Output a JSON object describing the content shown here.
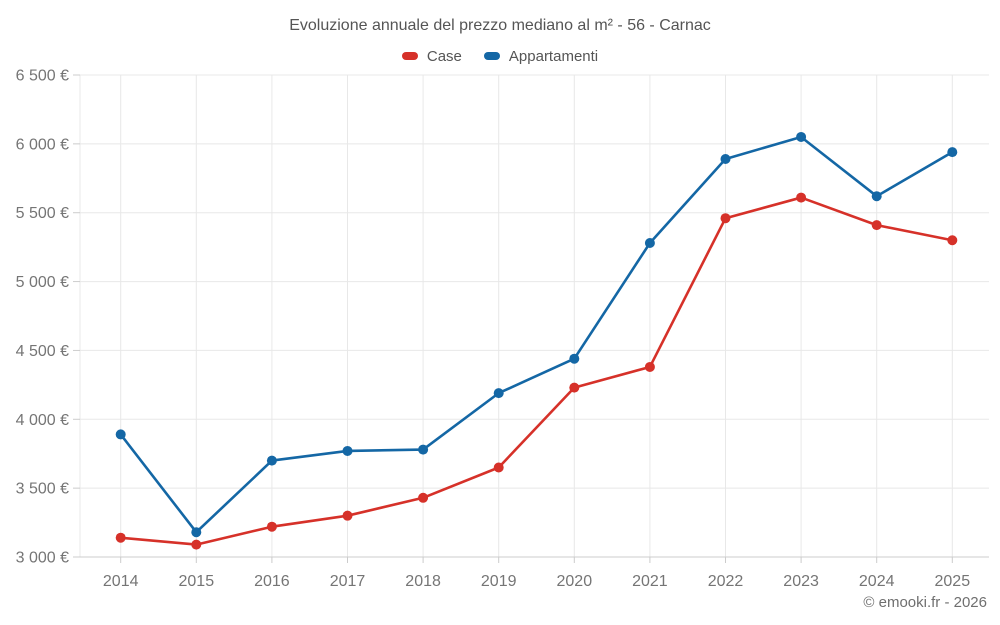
{
  "footer": {
    "copyright": "© emooki.fr - 2026"
  },
  "chart_data": {
    "type": "line",
    "title": "Evoluzione annuale del prezzo mediano al m² - 56 - Carnac",
    "x_labels": [
      "2014",
      "2015",
      "2016",
      "2017",
      "2018",
      "2019",
      "2020",
      "2021",
      "2022",
      "2023",
      "2024",
      "2025"
    ],
    "series": [
      {
        "name": "Case",
        "color": "#d63129",
        "values": [
          3140,
          3090,
          3220,
          3300,
          3430,
          3650,
          4230,
          4380,
          5460,
          5610,
          5410,
          5300
        ]
      },
      {
        "name": "Appartamenti",
        "color": "#1467a5",
        "values": [
          3890,
          3180,
          3700,
          3770,
          3780,
          4190,
          4440,
          5280,
          5890,
          6050,
          5620,
          5940
        ]
      }
    ],
    "ylim": [
      3000,
      6500
    ],
    "y_ticks": [
      {
        "value": 3000,
        "label": "3 000 €"
      },
      {
        "value": 3500,
        "label": "3 500 €"
      },
      {
        "value": 4000,
        "label": "4 000 €"
      },
      {
        "value": 4500,
        "label": "4 500 €"
      },
      {
        "value": 5000,
        "label": "5 000 €"
      },
      {
        "value": 5500,
        "label": "5 500 €"
      },
      {
        "value": 6000,
        "label": "6 000 €"
      },
      {
        "value": 6500,
        "label": "6 500 €"
      }
    ],
    "grid": true,
    "legend_position": "top",
    "colors": {
      "grid": "#e8e8e8",
      "axis": "#cccccc",
      "tick_text": "#757575",
      "title_text": "#555555"
    }
  }
}
